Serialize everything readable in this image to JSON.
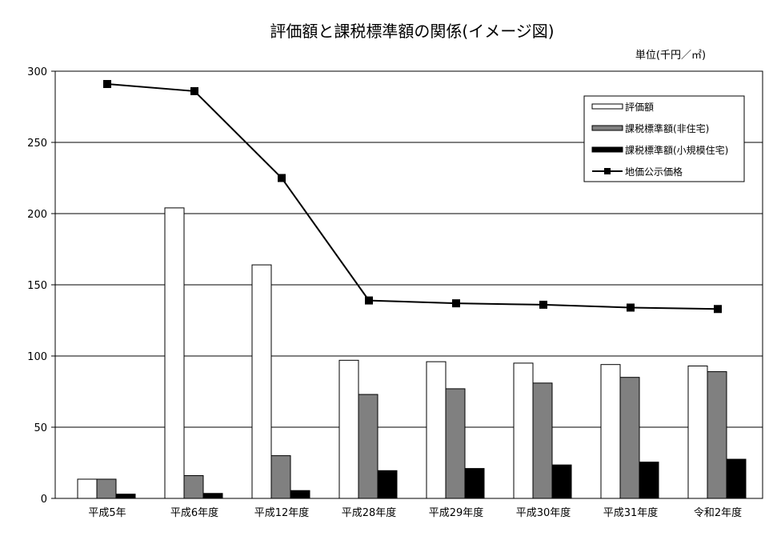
{
  "chart_data": {
    "type": "bar",
    "title": "評価額と課税標準額の関係(イメージ図)",
    "unit_label": "単位(千円／㎡)",
    "xlabel": "",
    "ylabel": "",
    "ylim": [
      0,
      300
    ],
    "yticks": [
      "0",
      "50",
      "100",
      "150",
      "200",
      "250",
      "300"
    ],
    "grid": true,
    "legend_position": "top-right",
    "categories": [
      "平成5年",
      "平成6年度",
      "平成12年度",
      "平成28年度",
      "平成29年度",
      "平成30年度",
      "平成31年度",
      "令和2年度"
    ],
    "series": [
      {
        "name": "評価額",
        "kind": "bar",
        "color": "#ffffff",
        "values": [
          13.5,
          204,
          164,
          97,
          96,
          95,
          94,
          93
        ]
      },
      {
        "name": "課税標準額(非住宅)",
        "kind": "bar",
        "color": "#808080",
        "values": [
          13.5,
          16,
          30,
          73,
          77,
          81,
          85,
          89
        ]
      },
      {
        "name": "課税標準額(小規模住宅)",
        "kind": "bar",
        "color": "#000000",
        "values": [
          3,
          3.5,
          5.5,
          19.5,
          21,
          23.5,
          25.5,
          27.5
        ]
      },
      {
        "name": "地価公示価格",
        "kind": "line",
        "color": "#000000",
        "values": [
          291,
          286,
          225,
          139,
          137,
          136,
          134,
          133
        ]
      }
    ]
  }
}
